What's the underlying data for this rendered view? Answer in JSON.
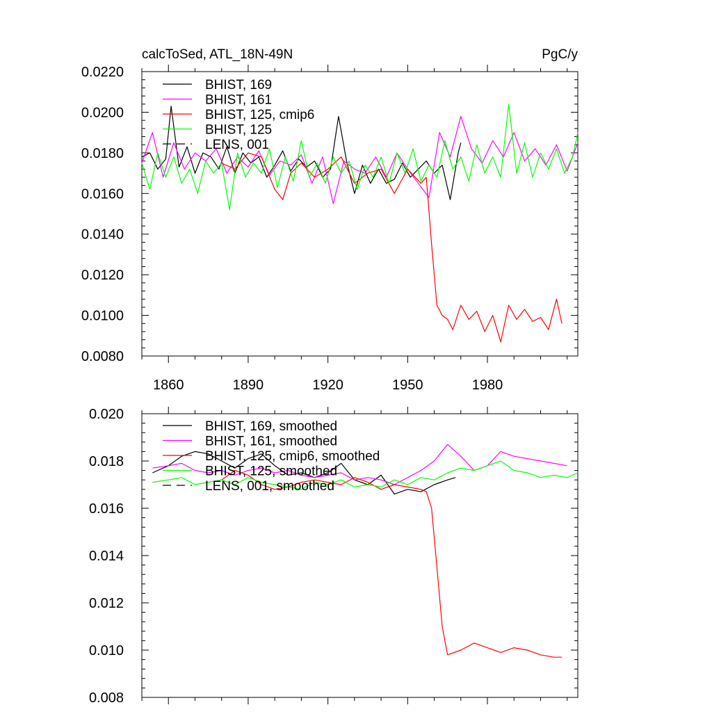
{
  "chart_data": [
    {
      "type": "line",
      "title": "calcToSed, ATL_18N-49N",
      "units": "PgC/y",
      "xlim": [
        1850,
        2014
      ],
      "ylim": [
        0.008,
        0.022
      ],
      "y_ticks": [
        "0.0080",
        "0.0100",
        "0.0120",
        "0.0140",
        "0.0160",
        "0.0180",
        "0.0200",
        "0.0220"
      ],
      "x_ticks": [
        "1860",
        "1890",
        "1920",
        "1950",
        "1980"
      ],
      "legend_position": "top-left",
      "series": [
        {
          "name": "BHIST, 169",
          "color": "#000000",
          "x": [
            1850,
            1853,
            1856,
            1859,
            1861,
            1864,
            1867,
            1870,
            1873,
            1876,
            1879,
            1882,
            1885,
            1888,
            1891,
            1894,
            1897,
            1900,
            1903,
            1906,
            1909,
            1912,
            1915,
            1918,
            1921,
            1924,
            1927,
            1930,
            1933,
            1936,
            1939,
            1942,
            1945,
            1948,
            1951,
            1954,
            1957,
            1960,
            1963,
            1966,
            1969,
            1970
          ],
          "values": [
            0.0178,
            0.018,
            0.0172,
            0.0177,
            0.0203,
            0.0173,
            0.0183,
            0.017,
            0.018,
            0.0178,
            0.0172,
            0.0183,
            0.017,
            0.018,
            0.0175,
            0.0178,
            0.0168,
            0.0174,
            0.0181,
            0.0171,
            0.0177,
            0.0173,
            0.0176,
            0.0168,
            0.0172,
            0.0198,
            0.0176,
            0.016,
            0.0174,
            0.0165,
            0.0172,
            0.0165,
            0.0167,
            0.0175,
            0.0168,
            0.0172,
            0.0176,
            0.017,
            0.0174,
            0.0157,
            0.018,
            0.0185
          ]
        },
        {
          "name": "BHIST, 161",
          "color": "#ff00ff",
          "x": [
            1850,
            1854,
            1858,
            1862,
            1866,
            1870,
            1874,
            1878,
            1882,
            1886,
            1890,
            1894,
            1898,
            1902,
            1906,
            1910,
            1914,
            1918,
            1922,
            1926,
            1930,
            1934,
            1938,
            1942,
            1946,
            1950,
            1954,
            1958,
            1962,
            1966,
            1970,
            1974,
            1978,
            1982,
            1986,
            1990,
            1994,
            1998,
            2002,
            2006,
            2010,
            2014
          ],
          "values": [
            0.0175,
            0.019,
            0.0168,
            0.0185,
            0.0172,
            0.018,
            0.0176,
            0.0182,
            0.017,
            0.0178,
            0.0173,
            0.0181,
            0.0169,
            0.0176,
            0.0174,
            0.0179,
            0.0165,
            0.0178,
            0.0155,
            0.0176,
            0.0172,
            0.017,
            0.0178,
            0.0168,
            0.018,
            0.0172,
            0.0165,
            0.0158,
            0.019,
            0.0178,
            0.0198,
            0.0182,
            0.0175,
            0.0186,
            0.0178,
            0.019,
            0.0176,
            0.0182,
            0.0174,
            0.0184,
            0.0171,
            0.0185
          ]
        },
        {
          "name": "BHIST, 125, cmip6",
          "color": "#ff0000",
          "x": [
            1880,
            1885,
            1890,
            1895,
            1900,
            1903,
            1906,
            1910,
            1915,
            1920,
            1925,
            1930,
            1935,
            1940,
            1945,
            1950,
            1955,
            1957,
            1959,
            1961,
            1963,
            1965,
            1967,
            1970,
            1973,
            1976,
            1979,
            1982,
            1985,
            1988,
            1991,
            1994,
            1997,
            2000,
            2003,
            2006,
            2008
          ],
          "values": [
            0.0175,
            0.0172,
            0.018,
            0.0178,
            0.0162,
            0.0157,
            0.017,
            0.0175,
            0.0168,
            0.0172,
            0.0178,
            0.0165,
            0.017,
            0.0172,
            0.016,
            0.0172,
            0.0165,
            0.0168,
            0.0135,
            0.0105,
            0.01,
            0.0098,
            0.0093,
            0.0105,
            0.0098,
            0.0102,
            0.0092,
            0.01,
            0.0087,
            0.0105,
            0.0098,
            0.0103,
            0.0097,
            0.0099,
            0.0093,
            0.0108,
            0.0096
          ]
        },
        {
          "name": "BHIST, 125",
          "color": "#00ff00",
          "x": [
            1850,
            1853,
            1856,
            1859,
            1862,
            1865,
            1868,
            1871,
            1874,
            1877,
            1880,
            1883,
            1886,
            1889,
            1892,
            1895,
            1898,
            1901,
            1904,
            1907,
            1910,
            1913,
            1916,
            1919,
            1922,
            1925,
            1928,
            1931,
            1934,
            1937,
            1940,
            1943,
            1946,
            1949,
            1952,
            1955,
            1958,
            1961,
            1964,
            1967,
            1970,
            1973,
            1976,
            1979,
            1982,
            1985,
            1988,
            1991,
            1994,
            1997,
            2000,
            2003,
            2006,
            2009,
            2012,
            2014
          ],
          "values": [
            0.0175,
            0.0162,
            0.018,
            0.0168,
            0.0178,
            0.0165,
            0.0172,
            0.016,
            0.0176,
            0.017,
            0.0175,
            0.0152,
            0.018,
            0.0168,
            0.0175,
            0.017,
            0.0182,
            0.0163,
            0.0178,
            0.0166,
            0.0186,
            0.0168,
            0.0175,
            0.0165,
            0.0178,
            0.017,
            0.0176,
            0.0162,
            0.0174,
            0.0168,
            0.0178,
            0.0165,
            0.018,
            0.017,
            0.0182,
            0.0166,
            0.0174,
            0.0168,
            0.0186,
            0.0172,
            0.0178,
            0.0166,
            0.0184,
            0.017,
            0.0178,
            0.0168,
            0.0204,
            0.017,
            0.0185,
            0.0168,
            0.018,
            0.0172,
            0.0182,
            0.017,
            0.0178,
            0.019
          ]
        }
      ]
    },
    {
      "type": "line",
      "xlim": [
        1850,
        2014
      ],
      "ylim": [
        0.008,
        0.02
      ],
      "y_ticks": [
        "0.008",
        "0.010",
        "0.012",
        "0.014",
        "0.016",
        "0.018",
        "0.020"
      ],
      "legend_position": "top-left",
      "series": [
        {
          "name": "BHIST, 169, smoothed",
          "color": "#000000",
          "x": [
            1854,
            1860,
            1865,
            1870,
            1875,
            1880,
            1885,
            1890,
            1895,
            1900,
            1905,
            1910,
            1915,
            1920,
            1925,
            1930,
            1935,
            1940,
            1945,
            1950,
            1955,
            1960,
            1965,
            1968
          ],
          "values": [
            0.0175,
            0.0178,
            0.0182,
            0.0184,
            0.0183,
            0.018,
            0.0177,
            0.0181,
            0.0183,
            0.0178,
            0.0174,
            0.0175,
            0.0173,
            0.0175,
            0.0179,
            0.0172,
            0.017,
            0.0174,
            0.0166,
            0.0168,
            0.0167,
            0.017,
            0.0172,
            0.0173
          ]
        },
        {
          "name": "BHIST, 161, smoothed",
          "color": "#ff00ff",
          "x": [
            1854,
            1860,
            1865,
            1870,
            1875,
            1880,
            1885,
            1890,
            1895,
            1900,
            1905,
            1910,
            1915,
            1920,
            1925,
            1930,
            1935,
            1940,
            1945,
            1950,
            1955,
            1960,
            1965,
            1970,
            1975,
            1980,
            1985,
            1990,
            1995,
            2000,
            2005,
            2010
          ],
          "values": [
            0.0177,
            0.0178,
            0.0179,
            0.0176,
            0.0175,
            0.0176,
            0.0174,
            0.0176,
            0.0177,
            0.0175,
            0.0176,
            0.0174,
            0.0173,
            0.0174,
            0.0175,
            0.0172,
            0.0173,
            0.0172,
            0.017,
            0.0173,
            0.0176,
            0.018,
            0.0187,
            0.0182,
            0.0176,
            0.0178,
            0.0184,
            0.0182,
            0.0181,
            0.018,
            0.0179,
            0.0178
          ]
        },
        {
          "name": "BHIST, 125, cmip6, smoothed",
          "color": "#ff0000",
          "x": [
            1880,
            1885,
            1890,
            1895,
            1900,
            1905,
            1910,
            1915,
            1920,
            1925,
            1930,
            1935,
            1940,
            1945,
            1950,
            1955,
            1957,
            1959,
            1961,
            1963,
            1965,
            1970,
            1975,
            1980,
            1985,
            1990,
            1995,
            2000,
            2005,
            2008
          ],
          "values": [
            0.0172,
            0.0176,
            0.0174,
            0.017,
            0.0168,
            0.0169,
            0.0171,
            0.0172,
            0.0171,
            0.017,
            0.0173,
            0.0171,
            0.0168,
            0.017,
            0.0169,
            0.0168,
            0.0167,
            0.016,
            0.0135,
            0.011,
            0.0098,
            0.01,
            0.0103,
            0.0101,
            0.0099,
            0.0101,
            0.01,
            0.0098,
            0.0097,
            0.0097
          ]
        },
        {
          "name": "BHIST, 125, smoothed",
          "color": "#00ff00",
          "x": [
            1854,
            1860,
            1865,
            1870,
            1875,
            1880,
            1885,
            1890,
            1895,
            1900,
            1905,
            1910,
            1915,
            1920,
            1925,
            1930,
            1935,
            1940,
            1945,
            1950,
            1955,
            1960,
            1965,
            1970,
            1975,
            1980,
            1985,
            1990,
            1995,
            2000,
            2005,
            2010,
            2014
          ],
          "values": [
            0.0171,
            0.0172,
            0.0173,
            0.017,
            0.0171,
            0.0172,
            0.017,
            0.0173,
            0.0171,
            0.017,
            0.0169,
            0.0168,
            0.0171,
            0.017,
            0.0172,
            0.0169,
            0.017,
            0.0169,
            0.0172,
            0.017,
            0.0173,
            0.0172,
            0.0175,
            0.0177,
            0.0176,
            0.0178,
            0.018,
            0.0176,
            0.0175,
            0.0173,
            0.0174,
            0.0173,
            0.0175
          ]
        }
      ]
    }
  ],
  "legend_extra": "LENS, 001",
  "legend_extra_smoothed": "LENS, 001, smoothed"
}
